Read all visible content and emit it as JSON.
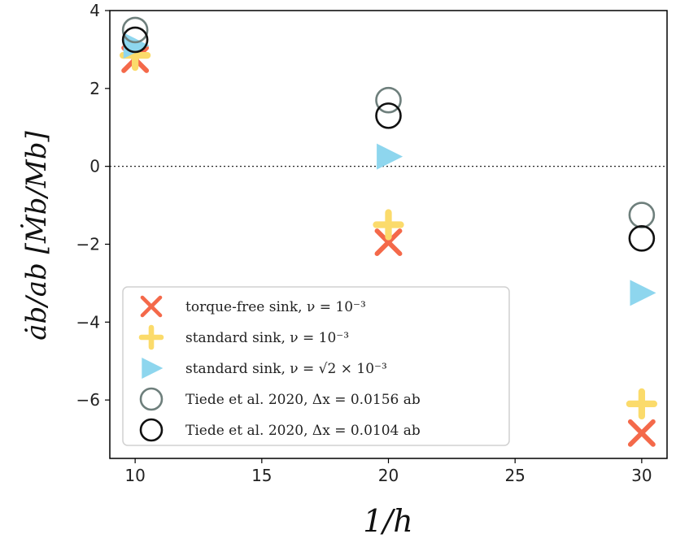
{
  "chart_data": {
    "type": "scatter",
    "xlabel": "1/h",
    "ylabel": "ȧb/ab [Ṁb/Mb]",
    "xlim": [
      9,
      31
    ],
    "ylim": [
      -7.5,
      4
    ],
    "xticks": [
      10,
      15,
      20,
      25,
      30
    ],
    "yticks": [
      -6,
      -4,
      -2,
      0,
      2,
      4
    ],
    "hline": 0,
    "grid": false,
    "legend_position": "lower-left",
    "series": [
      {
        "name": "torque-free sink, ν = 10⁻³",
        "marker": "x",
        "color": "#F4694A",
        "points": [
          {
            "x": 10,
            "y": 2.75
          },
          {
            "x": 20,
            "y": -1.95
          },
          {
            "x": 30,
            "y": -6.85
          }
        ]
      },
      {
        "name": "standard sink, ν = 10⁻³",
        "marker": "plus",
        "color": "#FBDB6B",
        "points": [
          {
            "x": 10,
            "y": 2.85
          },
          {
            "x": 20,
            "y": -1.5
          },
          {
            "x": 30,
            "y": -6.1
          }
        ]
      },
      {
        "name": "standard sink, ν = √2 × 10⁻³",
        "marker": "triangle-right",
        "color": "#8ED6EE",
        "points": [
          {
            "x": 10,
            "y": 3.1
          },
          {
            "x": 20,
            "y": 0.25
          },
          {
            "x": 30,
            "y": -3.25
          }
        ]
      },
      {
        "name": "Tiede et al. 2020,  Δx = 0.0156 ab",
        "marker": "circle-open",
        "color": "#6E7F7C",
        "points": [
          {
            "x": 10,
            "y": 3.5
          },
          {
            "x": 20,
            "y": 1.7
          },
          {
            "x": 30,
            "y": -1.25
          }
        ]
      },
      {
        "name": "Tiede et al. 2020,  Δx = 0.0104 ab",
        "marker": "circle-open",
        "color": "#111111",
        "points": [
          {
            "x": 10,
            "y": 3.25
          },
          {
            "x": 20,
            "y": 1.3
          },
          {
            "x": 30,
            "y": -1.85
          }
        ]
      }
    ]
  }
}
